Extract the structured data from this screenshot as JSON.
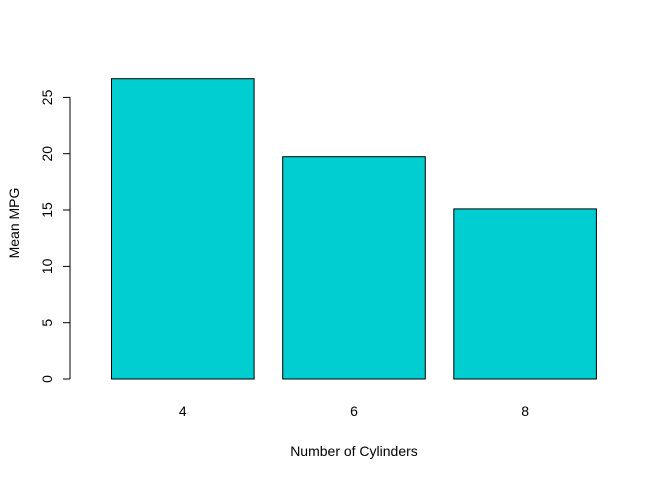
{
  "chart_data": {
    "type": "bar",
    "categories": [
      "4",
      "6",
      "8"
    ],
    "values": [
      26.66,
      19.74,
      15.1
    ],
    "xlabel": "Number of Cylinders",
    "ylabel": "Mean MPG",
    "ylim": [
      0,
      27.7
    ],
    "yticks": [
      0,
      5,
      10,
      15,
      20,
      25
    ],
    "yticks_labels": [
      "0",
      "5",
      "10",
      "15",
      "20",
      "25"
    ],
    "bar_color": "#00CED1",
    "border_color": "#000000",
    "grid": false
  }
}
